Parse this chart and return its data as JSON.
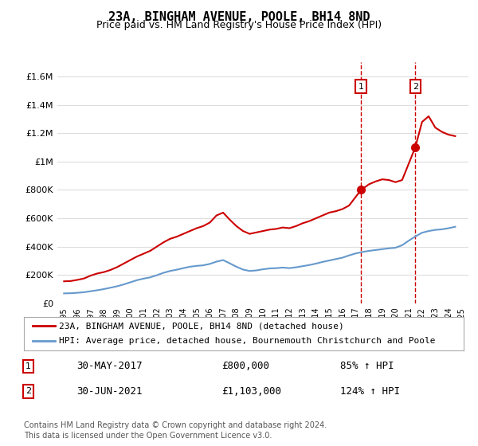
{
  "title": "23A, BINGHAM AVENUE, POOLE, BH14 8ND",
  "subtitle": "Price paid vs. HM Land Registry's House Price Index (HPI)",
  "legend_line1": "23A, BINGHAM AVENUE, POOLE, BH14 8ND (detached house)",
  "legend_line2": "HPI: Average price, detached house, Bournemouth Christchurch and Poole",
  "footer1": "Contains HM Land Registry data © Crown copyright and database right 2024.",
  "footer2": "This data is licensed under the Open Government Licence v3.0.",
  "sale1_label": "1",
  "sale1_date": "30-MAY-2017",
  "sale1_price": "£800,000",
  "sale1_hpi": "85% ↑ HPI",
  "sale2_label": "2",
  "sale2_date": "30-JUN-2021",
  "sale2_price": "£1,103,000",
  "sale2_hpi": "124% ↑ HPI",
  "sale1_year": 2017.4,
  "sale1_value": 800000,
  "sale2_year": 2021.5,
  "sale2_value": 1103000,
  "property_color": "#cc0000",
  "hpi_color": "#6699cc",
  "vline_color": "#cc0000",
  "background_color": "#ffffff",
  "grid_color": "#dddddd",
  "ylim": [
    0,
    1700000
  ],
  "xlim_start": 1995,
  "xlim_end": 2025.5,
  "yticks": [
    0,
    200000,
    400000,
    600000,
    800000,
    1000000,
    1200000,
    1400000,
    1600000
  ],
  "ytick_labels": [
    "£0",
    "£200K",
    "£400K",
    "£600K",
    "£800K",
    "£1M",
    "£1.2M",
    "£1.4M",
    "£1.6M"
  ],
  "xticks": [
    1995,
    1996,
    1997,
    1998,
    1999,
    2000,
    2001,
    2002,
    2003,
    2004,
    2005,
    2006,
    2007,
    2008,
    2009,
    2010,
    2011,
    2012,
    2013,
    2014,
    2015,
    2016,
    2017,
    2018,
    2019,
    2020,
    2021,
    2022,
    2023,
    2024,
    2025
  ],
  "property_x": [
    1995.0,
    1995.5,
    1996.0,
    1996.5,
    1997.0,
    1997.5,
    1998.0,
    1998.5,
    1999.0,
    1999.5,
    2000.0,
    2000.5,
    2001.0,
    2001.5,
    2002.0,
    2002.5,
    2003.0,
    2003.5,
    2004.0,
    2004.5,
    2005.0,
    2005.5,
    2006.0,
    2006.5,
    2007.0,
    2007.5,
    2008.0,
    2008.5,
    2009.0,
    2009.5,
    2010.0,
    2010.5,
    2011.0,
    2011.5,
    2012.0,
    2012.5,
    2013.0,
    2013.5,
    2014.0,
    2014.5,
    2015.0,
    2015.5,
    2016.0,
    2016.5,
    2017.4,
    2018.0,
    2018.5,
    2019.0,
    2019.5,
    2020.0,
    2020.5,
    2021.5,
    2022.0,
    2022.5,
    2023.0,
    2023.5,
    2024.0,
    2024.5
  ],
  "property_y": [
    155000,
    157000,
    165000,
    175000,
    195000,
    210000,
    220000,
    235000,
    255000,
    280000,
    305000,
    330000,
    350000,
    370000,
    400000,
    430000,
    455000,
    470000,
    490000,
    510000,
    530000,
    545000,
    570000,
    620000,
    640000,
    590000,
    545000,
    510000,
    490000,
    500000,
    510000,
    520000,
    525000,
    535000,
    530000,
    545000,
    565000,
    580000,
    600000,
    620000,
    640000,
    650000,
    665000,
    690000,
    800000,
    840000,
    860000,
    875000,
    870000,
    855000,
    870000,
    1103000,
    1280000,
    1320000,
    1240000,
    1210000,
    1190000,
    1180000
  ],
  "hpi_x": [
    1995.0,
    1995.5,
    1996.0,
    1996.5,
    1997.0,
    1997.5,
    1998.0,
    1998.5,
    1999.0,
    1999.5,
    2000.0,
    2000.5,
    2001.0,
    2001.5,
    2002.0,
    2002.5,
    2003.0,
    2003.5,
    2004.0,
    2004.5,
    2005.0,
    2005.5,
    2006.0,
    2006.5,
    2007.0,
    2007.5,
    2008.0,
    2008.5,
    2009.0,
    2009.5,
    2010.0,
    2010.5,
    2011.0,
    2011.5,
    2012.0,
    2012.5,
    2013.0,
    2013.5,
    2014.0,
    2014.5,
    2015.0,
    2015.5,
    2016.0,
    2016.5,
    2017.0,
    2017.5,
    2018.0,
    2018.5,
    2019.0,
    2019.5,
    2020.0,
    2020.5,
    2021.0,
    2021.5,
    2022.0,
    2022.5,
    2023.0,
    2023.5,
    2024.0,
    2024.5
  ],
  "hpi_y": [
    70000,
    71000,
    74000,
    78000,
    85000,
    92000,
    100000,
    110000,
    120000,
    133000,
    148000,
    163000,
    174000,
    183000,
    198000,
    215000,
    228000,
    237000,
    248000,
    258000,
    264000,
    268000,
    278000,
    294000,
    305000,
    282000,
    258000,
    238000,
    228000,
    232000,
    240000,
    246000,
    248000,
    252000,
    248000,
    254000,
    262000,
    270000,
    280000,
    292000,
    302000,
    312000,
    322000,
    338000,
    352000,
    362000,
    370000,
    376000,
    382000,
    388000,
    392000,
    410000,
    442000,
    472000,
    498000,
    510000,
    518000,
    522000,
    530000,
    540000
  ]
}
